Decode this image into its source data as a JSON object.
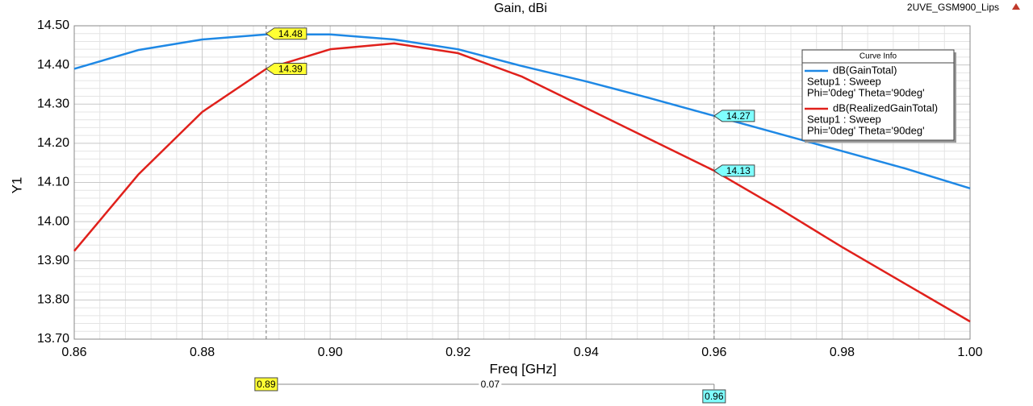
{
  "chart_data": {
    "type": "line",
    "title": "Gain, dBi",
    "project": "2UVE_GSM900_Lips",
    "xlabel": "Freq [GHz]",
    "ylabel": "Y1",
    "x": [
      0.86,
      0.87,
      0.88,
      0.89,
      0.9,
      0.91,
      0.92,
      0.93,
      0.94,
      0.95,
      0.96,
      0.97,
      0.98,
      0.99,
      1.0
    ],
    "series": [
      {
        "name": "dB(GainTotal)",
        "setup": "Setup1 : Sweep",
        "variables": "Phi='0deg' Theta='90deg'",
        "color": "#1e88e5",
        "values": [
          14.39,
          14.438,
          14.465,
          14.478,
          14.478,
          14.465,
          14.44,
          14.397,
          14.358,
          14.315,
          14.27,
          14.225,
          14.18,
          14.135,
          14.085
        ]
      },
      {
        "name": "dB(RealizedGainTotal)",
        "setup": "Setup1 : Sweep",
        "variables": "Phi='0deg' Theta='90deg'",
        "color": "#e0201b",
        "values": [
          13.925,
          14.12,
          14.28,
          14.39,
          14.44,
          14.455,
          14.43,
          14.37,
          14.29,
          14.21,
          14.13,
          14.035,
          13.935,
          13.84,
          13.745
        ]
      }
    ],
    "xlim": [
      0.86,
      1.0
    ],
    "ylim": [
      13.7,
      14.5
    ],
    "xticks": [
      0.86,
      0.88,
      {
        "value": 0.9,
        "label": "0.90"
      },
      0.92,
      0.94,
      0.96,
      0.98,
      {
        "value": 1.0,
        "label": "1.00"
      }
    ],
    "yticks": [
      {
        "value": 13.7,
        "label": "13.70"
      },
      {
        "value": 13.8,
        "label": "13.80"
      },
      {
        "value": 13.9,
        "label": "13.90"
      },
      {
        "value": 14.0,
        "label": "14.00"
      },
      {
        "value": 14.1,
        "label": "14.10"
      },
      {
        "value": 14.2,
        "label": "14.20"
      },
      {
        "value": 14.3,
        "label": "14.30"
      },
      {
        "value": 14.4,
        "label": "14.40"
      },
      {
        "value": 14.5,
        "label": "14.50"
      }
    ],
    "grid": true,
    "legend_title": "Curve Info",
    "legend": "upper right",
    "markers": [
      {
        "x": 0.89,
        "values": [
          14.48,
          14.39
        ],
        "color": "#ffff33"
      },
      {
        "x": 0.96,
        "values": [
          14.27,
          14.13
        ],
        "color": "#7fffff"
      }
    ],
    "delta": 0.07
  }
}
